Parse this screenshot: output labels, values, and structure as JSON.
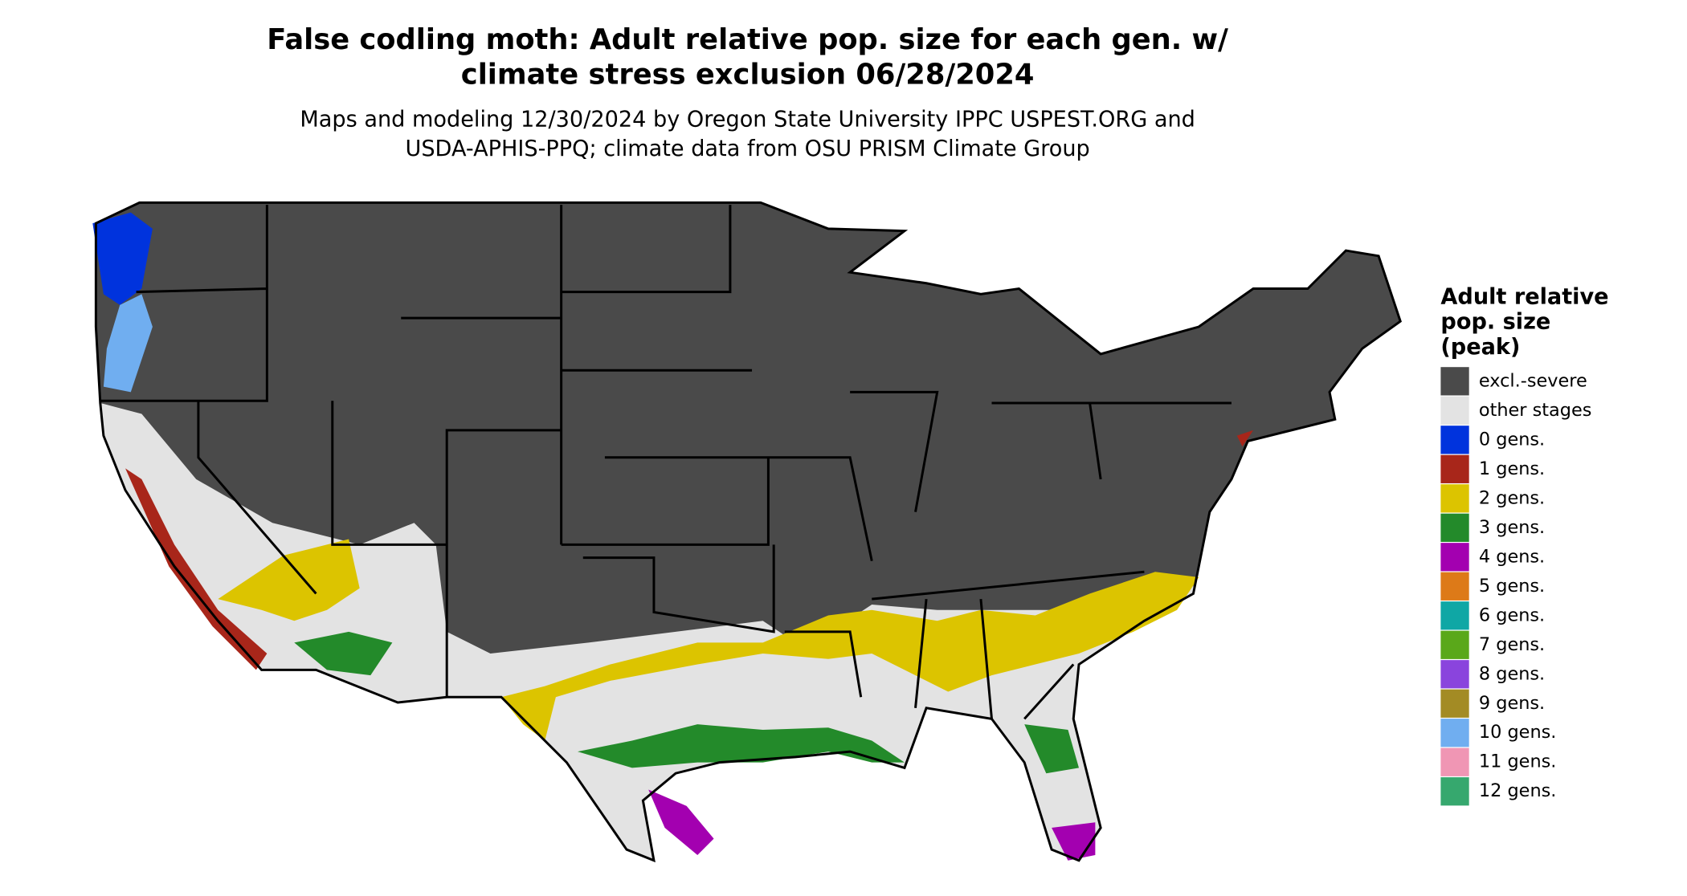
{
  "header": {
    "title": [
      "False codling moth: Adult relative pop. size for each gen. w/",
      "climate stress exclusion 06/28/2024"
    ],
    "subtitle": [
      "Maps and modeling 12/30/2024 by Oregon State University IPPC USPEST.ORG and",
      "USDA-APHIS-PPQ; climate data from OSU PRISM Climate Group"
    ]
  },
  "legend": {
    "title": [
      "Adult relative",
      "pop. size",
      "(peak)"
    ],
    "items": [
      {
        "label": "excl.-severe",
        "color": "#4a4a4a"
      },
      {
        "label": "other stages",
        "color": "#e3e3e3"
      },
      {
        "label": "0 gens.",
        "color": "#0033dd"
      },
      {
        "label": "1 gens.",
        "color": "#a8261a"
      },
      {
        "label": "2 gens.",
        "color": "#dcc400"
      },
      {
        "label": "3 gens.",
        "color": "#238a2a"
      },
      {
        "label": "4 gens.",
        "color": "#a300b0"
      },
      {
        "label": "5 gens.",
        "color": "#dd7a18"
      },
      {
        "label": "6 gens.",
        "color": "#0fa7a5"
      },
      {
        "label": "7 gens.",
        "color": "#5aa81a"
      },
      {
        "label": "8 gens.",
        "color": "#8a44dd"
      },
      {
        "label": "9 gens.",
        "color": "#a38b24"
      },
      {
        "label": "10 gens.",
        "color": "#70aef0"
      },
      {
        "label": "11 gens.",
        "color": "#f096b4"
      },
      {
        "label": "12 gens.",
        "color": "#36a86e"
      }
    ]
  }
}
